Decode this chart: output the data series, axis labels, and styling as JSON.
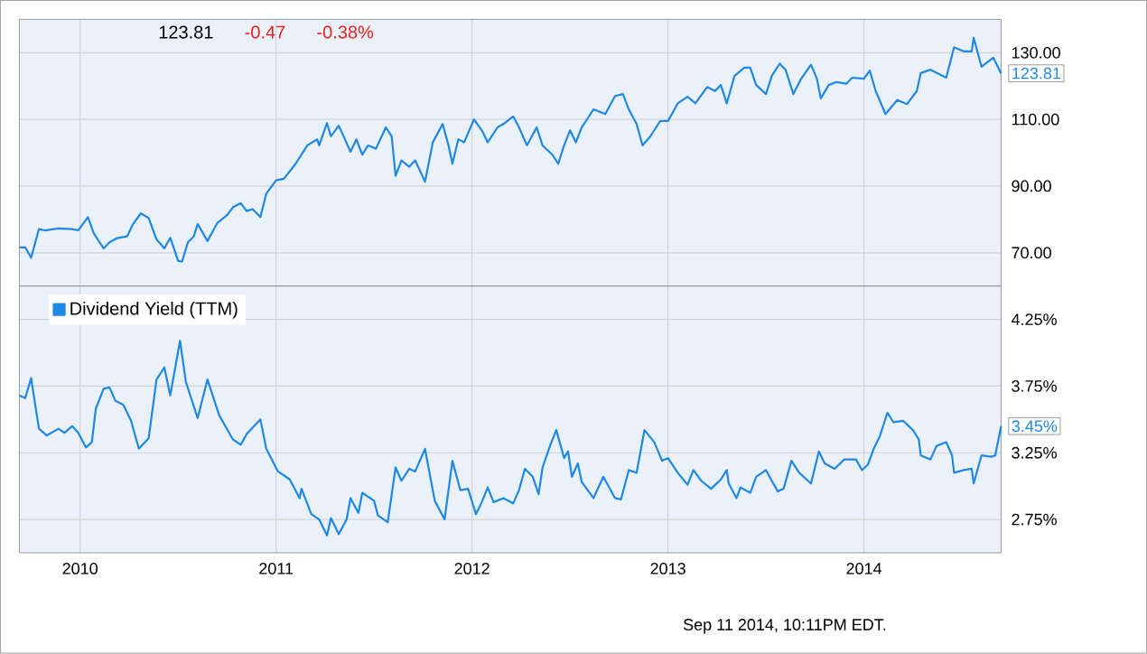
{
  "chart_data": [
    {
      "type": "line",
      "grid": true,
      "tick_labels": "y",
      "xlim": [
        2009.69,
        2014.7
      ],
      "ylim": [
        60,
        140
      ],
      "xticks": [
        2010,
        2011,
        2012,
        2013,
        2014
      ],
      "yticks": [
        {
          "value": 70,
          "label": "70.00"
        },
        {
          "value": 90,
          "label": "90.00"
        },
        {
          "value": 110,
          "label": "110.00"
        },
        {
          "value": 130,
          "label": "130.00"
        }
      ],
      "annotations": [
        "123.81",
        "-0.47",
        "-0.38%",
        {
          "text": "123.81",
          "x": 2014.7,
          "y": 123.81
        }
      ],
      "series": [
        {
          "color": "#1f88e5",
          "x": [
            2009.69,
            2009.72,
            2009.75,
            2009.79,
            2009.82,
            2009.89,
            2009.96,
            2009.99,
            2010.04,
            2010.07,
            2010.1,
            2010.12,
            2010.15,
            2010.19,
            2010.24,
            2010.27,
            2010.31,
            2010.35,
            2010.39,
            2010.43,
            2010.46,
            2010.5,
            2010.52,
            2010.55,
            2010.58,
            2010.6,
            2010.65,
            2010.7,
            2010.75,
            2010.78,
            2010.82,
            2010.85,
            2010.88,
            2010.92,
            2010.95,
            2011.0,
            2011.04,
            2011.1,
            2011.16,
            2011.21,
            2011.22,
            2011.26,
            2011.28,
            2011.32,
            2011.38,
            2011.41,
            2011.44,
            2011.47,
            2011.51,
            2011.56,
            2011.59,
            2011.61,
            2011.64,
            2011.68,
            2011.71,
            2011.76,
            2011.8,
            2011.85,
            2011.88,
            2011.9,
            2011.93,
            2011.96,
            2012.01,
            2012.05,
            2012.08,
            2012.13,
            2012.16,
            2012.21,
            2012.24,
            2012.28,
            2012.33,
            2012.36,
            2012.41,
            2012.44,
            2012.47,
            2012.5,
            2012.53,
            2012.56,
            2012.62,
            2012.68,
            2012.73,
            2012.77,
            2012.8,
            2012.84,
            2012.87,
            2012.91,
            2012.96,
            2013.0,
            2013.05,
            2013.1,
            2013.14,
            2013.2,
            2013.24,
            2013.27,
            2013.3,
            2013.34,
            2013.39,
            2013.42,
            2013.45,
            2013.5,
            2013.53,
            2013.57,
            2013.6,
            2013.64,
            2013.68,
            2013.73,
            2013.76,
            2013.78,
            2013.82,
            2013.86,
            2013.91,
            2013.94,
            2014.0,
            2014.03,
            2014.06,
            2014.11,
            2014.17,
            2014.22,
            2014.27,
            2014.29,
            2014.34,
            2014.42,
            2014.46,
            2014.51,
            2014.55,
            2014.56,
            2014.6,
            2014.66,
            2014.7
          ],
          "values": [
            71.6,
            71.6,
            68.5,
            77.1,
            76.7,
            77.3,
            77.1,
            76.7,
            80.7,
            75.8,
            73.1,
            71.3,
            73.1,
            74.4,
            74.9,
            78.6,
            81.8,
            80.4,
            74.0,
            71.3,
            74.5,
            67.6,
            67.3,
            73.1,
            74.9,
            78.6,
            73.5,
            78.9,
            81.3,
            83.6,
            84.9,
            82.5,
            83.1,
            80.7,
            87.7,
            91.7,
            92.2,
            96.7,
            102.2,
            104.0,
            102.2,
            108.9,
            104.9,
            108.1,
            100.3,
            104.0,
            99.4,
            102.2,
            101.2,
            107.6,
            104.9,
            93.1,
            97.7,
            95.8,
            97.7,
            91.3,
            103.1,
            108.6,
            102.2,
            96.7,
            104.0,
            103.1,
            110.0,
            106.7,
            103.1,
            107.6,
            108.6,
            110.9,
            107.6,
            102.2,
            107.6,
            102.2,
            99.4,
            96.7,
            102.2,
            106.7,
            103.1,
            107.6,
            113.0,
            111.6,
            117.0,
            117.6,
            113.0,
            108.6,
            102.2,
            104.9,
            109.5,
            109.5,
            114.8,
            116.8,
            114.8,
            119.7,
            118.5,
            120.3,
            114.8,
            123.1,
            125.5,
            125.5,
            120.3,
            117.6,
            123.1,
            126.7,
            124.9,
            117.6,
            122.2,
            126.4,
            122.2,
            116.3,
            120.3,
            121.2,
            120.7,
            122.5,
            122.2,
            124.6,
            118.5,
            111.6,
            115.8,
            114.6,
            118.5,
            123.9,
            124.9,
            122.5,
            131.6,
            130.4,
            130.4,
            134.5,
            125.8,
            128.5,
            123.81
          ]
        }
      ]
    },
    {
      "type": "line",
      "grid": true,
      "legend": "top left",
      "xlim": [
        2009.69,
        2014.7
      ],
      "ylim": [
        2.5,
        4.5
      ],
      "xticks": [
        2010,
        2011,
        2012,
        2013,
        2014
      ],
      "yticks": [
        {
          "value": 2.75,
          "label": "2.75%"
        },
        {
          "value": 3.25,
          "label": "3.25%"
        },
        {
          "value": 3.75,
          "label": "3.75%"
        },
        {
          "value": 4.25,
          "label": "4.25%"
        }
      ],
      "annotations": [
        {
          "text": "3.45%",
          "x": 2014.7,
          "y": 3.45
        },
        "Sep 11 2014, 10:11PM EDT."
      ],
      "series": [
        {
          "name": "Dividend Yield (TTM)",
          "color": "#1f88e5",
          "x": [
            2009.69,
            2009.72,
            2009.75,
            2009.79,
            2009.83,
            2009.89,
            2009.92,
            2009.96,
            2009.99,
            2010.03,
            2010.06,
            2010.08,
            2010.12,
            2010.15,
            2010.18,
            2010.22,
            2010.26,
            2010.3,
            2010.35,
            2010.39,
            2010.43,
            2010.46,
            2010.51,
            2010.54,
            2010.6,
            2010.65,
            2010.71,
            2010.78,
            2010.82,
            2010.85,
            2010.92,
            2010.95,
            2011.01,
            2011.07,
            2011.12,
            2011.13,
            2011.18,
            2011.22,
            2011.26,
            2011.28,
            2011.32,
            2011.36,
            2011.38,
            2011.42,
            2011.44,
            2011.5,
            2011.52,
            2011.57,
            2011.61,
            2011.64,
            2011.68,
            2011.71,
            2011.76,
            2011.81,
            2011.86,
            2011.9,
            2011.94,
            2011.98,
            2012.02,
            2012.05,
            2012.08,
            2012.11,
            2012.16,
            2012.21,
            2012.24,
            2012.27,
            2012.31,
            2012.34,
            2012.36,
            2012.4,
            2012.43,
            2012.47,
            2012.49,
            2012.51,
            2012.54,
            2012.56,
            2012.62,
            2012.67,
            2012.73,
            2012.76,
            2012.8,
            2012.84,
            2012.88,
            2012.93,
            2012.97,
            2013.0,
            2013.05,
            2013.1,
            2013.13,
            2013.17,
            2013.22,
            2013.27,
            2013.3,
            2013.31,
            2013.35,
            2013.37,
            2013.42,
            2013.45,
            2013.5,
            2013.56,
            2013.59,
            2013.63,
            2013.67,
            2013.73,
            2013.77,
            2013.8,
            2013.85,
            2013.9,
            2013.96,
            2013.99,
            2014.02,
            2014.05,
            2014.08,
            2014.12,
            2014.15,
            2014.2,
            2014.25,
            2014.28,
            2014.29,
            2014.34,
            2014.37,
            2014.42,
            2014.45,
            2014.46,
            2014.51,
            2014.55,
            2014.56,
            2014.6,
            2014.65,
            2014.67,
            2014.7
          ],
          "values": [
            3.68,
            3.66,
            3.81,
            3.43,
            3.38,
            3.43,
            3.4,
            3.45,
            3.4,
            3.29,
            3.33,
            3.58,
            3.73,
            3.74,
            3.64,
            3.61,
            3.49,
            3.28,
            3.36,
            3.8,
            3.89,
            3.68,
            4.09,
            3.78,
            3.51,
            3.8,
            3.53,
            3.35,
            3.31,
            3.39,
            3.5,
            3.28,
            3.11,
            3.05,
            2.91,
            2.98,
            2.79,
            2.75,
            2.63,
            2.76,
            2.64,
            2.75,
            2.91,
            2.8,
            2.95,
            2.89,
            2.78,
            2.73,
            3.14,
            3.04,
            3.13,
            3.11,
            3.28,
            2.89,
            2.75,
            3.19,
            2.97,
            2.98,
            2.79,
            2.88,
            2.99,
            2.88,
            2.91,
            2.87,
            2.97,
            3.13,
            3.07,
            2.94,
            3.14,
            3.31,
            3.42,
            3.21,
            3.26,
            3.07,
            3.17,
            3.03,
            2.91,
            3.07,
            2.91,
            2.9,
            3.12,
            3.1,
            3.42,
            3.33,
            3.19,
            3.21,
            3.1,
            3.01,
            3.12,
            3.04,
            2.98,
            3.05,
            3.12,
            3.02,
            2.91,
            2.99,
            2.95,
            3.07,
            3.12,
            2.96,
            2.98,
            3.19,
            3.1,
            3.02,
            3.26,
            3.17,
            3.13,
            3.2,
            3.2,
            3.12,
            3.16,
            3.28,
            3.37,
            3.55,
            3.48,
            3.49,
            3.42,
            3.35,
            3.23,
            3.2,
            3.3,
            3.33,
            3.23,
            3.1,
            3.12,
            3.13,
            3.02,
            3.23,
            3.22,
            3.23,
            3.45
          ]
        }
      ]
    }
  ]
}
